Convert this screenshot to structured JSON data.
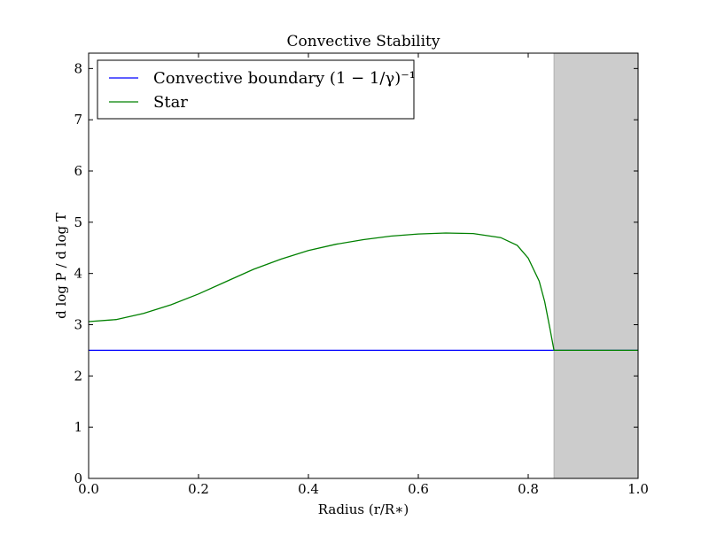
{
  "chart_data": {
    "type": "line",
    "title": "Convective Stability",
    "xlabel": "Radius (r/R∗)",
    "ylabel": "d log P / d log T",
    "xlim": [
      0.0,
      1.0
    ],
    "ylim": [
      0,
      8.3
    ],
    "x_ticks": [
      "0.0",
      "0.2",
      "0.4",
      "0.6",
      "0.8",
      "1.0"
    ],
    "x_tick_values": [
      0.0,
      0.2,
      0.4,
      0.6,
      0.8,
      1.0
    ],
    "y_ticks": [
      "0",
      "1",
      "2",
      "3",
      "4",
      "5",
      "6",
      "7",
      "8"
    ],
    "y_tick_values": [
      0,
      1,
      2,
      3,
      4,
      5,
      6,
      7,
      8
    ],
    "grid": false,
    "legend_position": "top-left",
    "shaded_region": {
      "x_start": 0.847,
      "x_end": 1.0,
      "color": "#cccccc"
    },
    "series": [
      {
        "name": "Convective boundary (1 − 1/γ)⁻¹",
        "color": "#0000ff",
        "x": [
          0.0,
          1.0
        ],
        "y": [
          2.5,
          2.5
        ]
      },
      {
        "name": "Star",
        "color": "#008000",
        "x": [
          0.0,
          0.05,
          0.1,
          0.15,
          0.2,
          0.25,
          0.3,
          0.35,
          0.4,
          0.45,
          0.5,
          0.55,
          0.6,
          0.65,
          0.7,
          0.75,
          0.78,
          0.8,
          0.82,
          0.83,
          0.84,
          0.847,
          0.9,
          0.95,
          1.0
        ],
        "y": [
          3.06,
          3.1,
          3.22,
          3.39,
          3.6,
          3.84,
          4.08,
          4.28,
          4.45,
          4.57,
          4.66,
          4.73,
          4.77,
          4.79,
          4.78,
          4.7,
          4.55,
          4.3,
          3.85,
          3.45,
          2.9,
          2.5,
          2.5,
          2.5,
          2.5
        ]
      }
    ]
  }
}
